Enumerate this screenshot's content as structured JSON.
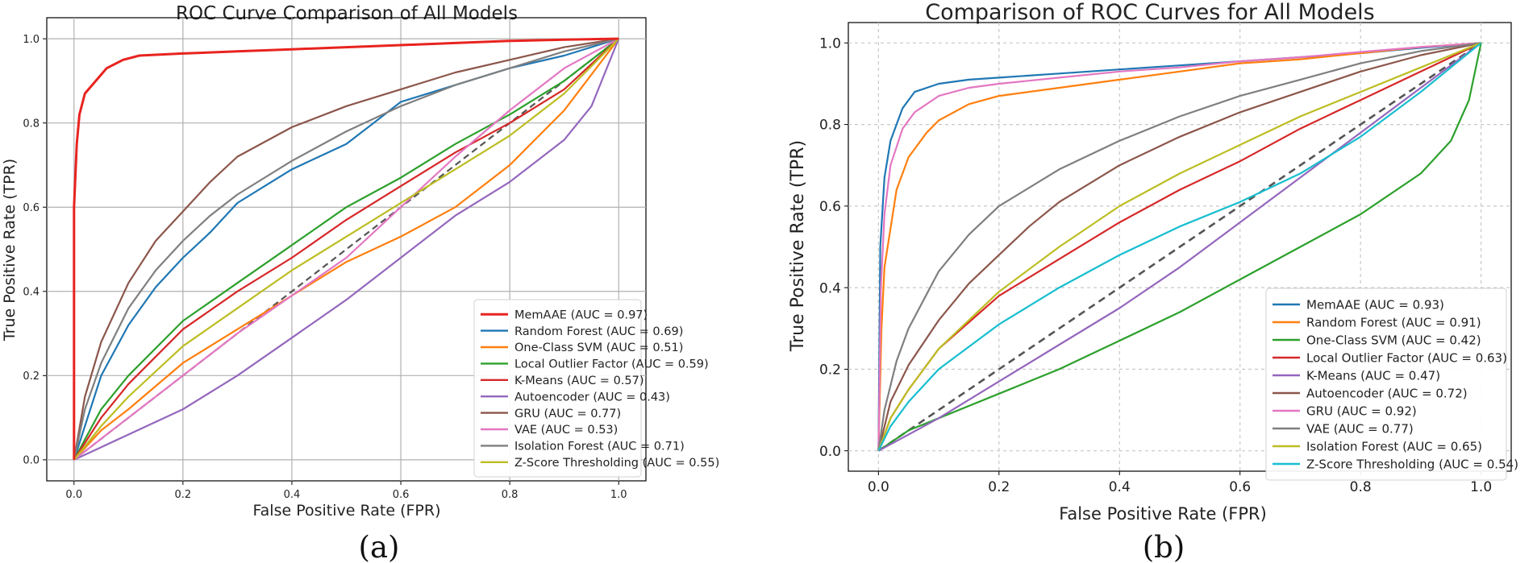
{
  "chart_data": [
    {
      "id": "a",
      "type": "line",
      "title": "ROC Curve Comparison of All Models",
      "xlabel": "False Positive Rate (FPR)",
      "ylabel": "True Positive Rate (TPR)",
      "caption": "(a)",
      "xlim": [
        -0.05,
        1.05
      ],
      "ylim": [
        -0.05,
        1.05
      ],
      "xticks": [
        0.0,
        0.2,
        0.4,
        0.6,
        0.8,
        1.0
      ],
      "yticks": [
        0.0,
        0.2,
        0.4,
        0.6,
        0.8,
        1.0
      ],
      "grid": "solid",
      "legend_position": "lower-right",
      "diagonal": true,
      "series": [
        {
          "name": "MemAAE",
          "label": "MemAAE (AUC = 0.97)",
          "auc": 0.97,
          "color": "#e8231f",
          "x": [
            0,
            0,
            0.005,
            0.01,
            0.02,
            0.04,
            0.06,
            0.09,
            0.12,
            0.2,
            0.3,
            0.4,
            0.5,
            0.6,
            0.7,
            0.8,
            0.9,
            1.0
          ],
          "y": [
            0,
            0.6,
            0.75,
            0.82,
            0.87,
            0.9,
            0.93,
            0.95,
            0.96,
            0.965,
            0.97,
            0.975,
            0.98,
            0.985,
            0.99,
            0.995,
            0.998,
            1.0
          ]
        },
        {
          "name": "Random Forest",
          "label": "Random Forest (AUC = 0.69)",
          "auc": 0.69,
          "color": "#1f77b4",
          "x": [
            0,
            0.02,
            0.05,
            0.1,
            0.15,
            0.2,
            0.25,
            0.3,
            0.35,
            0.4,
            0.45,
            0.5,
            0.55,
            0.6,
            0.7,
            0.8,
            0.9,
            1.0
          ],
          "y": [
            0,
            0.08,
            0.2,
            0.32,
            0.41,
            0.48,
            0.54,
            0.61,
            0.65,
            0.69,
            0.72,
            0.75,
            0.8,
            0.85,
            0.89,
            0.93,
            0.96,
            1.0
          ]
        },
        {
          "name": "One-Class SVM",
          "label": "One-Class SVM (AUC = 0.51)",
          "auc": 0.51,
          "color": "#ff7f0e",
          "x": [
            0,
            0.05,
            0.1,
            0.2,
            0.3,
            0.4,
            0.5,
            0.6,
            0.7,
            0.8,
            0.9,
            1.0
          ],
          "y": [
            0,
            0.07,
            0.12,
            0.23,
            0.31,
            0.39,
            0.47,
            0.53,
            0.6,
            0.7,
            0.83,
            1.0
          ]
        },
        {
          "name": "Local Outlier Factor",
          "label": "Local Outlier Factor (AUC = 0.59)",
          "auc": 0.59,
          "color": "#2ca02c",
          "x": [
            0,
            0.05,
            0.1,
            0.2,
            0.3,
            0.4,
            0.5,
            0.6,
            0.7,
            0.8,
            0.9,
            1.0
          ],
          "y": [
            0,
            0.12,
            0.2,
            0.33,
            0.42,
            0.51,
            0.6,
            0.67,
            0.75,
            0.82,
            0.9,
            1.0
          ]
        },
        {
          "name": "K-Means",
          "label": "K-Means (AUC = 0.57)",
          "auc": 0.57,
          "color": "#d62728",
          "x": [
            0,
            0.05,
            0.1,
            0.2,
            0.3,
            0.4,
            0.5,
            0.6,
            0.7,
            0.8,
            0.9,
            1.0
          ],
          "y": [
            0,
            0.1,
            0.18,
            0.31,
            0.4,
            0.48,
            0.57,
            0.65,
            0.73,
            0.8,
            0.88,
            1.0
          ]
        },
        {
          "name": "Autoencoder",
          "label": "Autoencoder (AUC = 0.43)",
          "auc": 0.43,
          "color": "#9467bd",
          "x": [
            0,
            0.05,
            0.1,
            0.2,
            0.3,
            0.4,
            0.5,
            0.6,
            0.7,
            0.8,
            0.9,
            0.95,
            1.0
          ],
          "y": [
            0,
            0.03,
            0.06,
            0.12,
            0.2,
            0.29,
            0.38,
            0.48,
            0.58,
            0.66,
            0.76,
            0.84,
            1.0
          ]
        },
        {
          "name": "GRU",
          "label": "GRU (AUC = 0.77)",
          "auc": 0.77,
          "color": "#8c564b",
          "x": [
            0,
            0.02,
            0.05,
            0.1,
            0.15,
            0.2,
            0.25,
            0.3,
            0.4,
            0.5,
            0.6,
            0.7,
            0.8,
            0.9,
            1.0
          ],
          "y": [
            0,
            0.15,
            0.28,
            0.42,
            0.52,
            0.59,
            0.66,
            0.72,
            0.79,
            0.84,
            0.88,
            0.92,
            0.95,
            0.98,
            1.0
          ]
        },
        {
          "name": "VAE",
          "label": "VAE (AUC = 0.53)",
          "auc": 0.53,
          "color": "#e377c2",
          "x": [
            0,
            0.05,
            0.1,
            0.2,
            0.3,
            0.4,
            0.5,
            0.6,
            0.7,
            0.8,
            0.9,
            1.0
          ],
          "y": [
            0,
            0.05,
            0.1,
            0.2,
            0.3,
            0.39,
            0.48,
            0.6,
            0.72,
            0.83,
            0.93,
            1.0
          ]
        },
        {
          "name": "Isolation Forest",
          "label": "Isolation Forest (AUC = 0.71)",
          "auc": 0.71,
          "color": "#7f7f7f",
          "x": [
            0,
            0.02,
            0.05,
            0.1,
            0.15,
            0.2,
            0.25,
            0.3,
            0.4,
            0.5,
            0.6,
            0.7,
            0.8,
            0.9,
            1.0
          ],
          "y": [
            0,
            0.12,
            0.23,
            0.36,
            0.45,
            0.52,
            0.58,
            0.63,
            0.71,
            0.78,
            0.84,
            0.89,
            0.93,
            0.97,
            1.0
          ]
        },
        {
          "name": "Z-Score Thresholding",
          "label": "Z-Score Thresholding (AUC = 0.55)",
          "auc": 0.55,
          "color": "#bcbd22",
          "x": [
            0,
            0.05,
            0.1,
            0.2,
            0.3,
            0.4,
            0.5,
            0.6,
            0.7,
            0.8,
            0.9,
            1.0
          ],
          "y": [
            0,
            0.08,
            0.15,
            0.27,
            0.36,
            0.45,
            0.53,
            0.61,
            0.69,
            0.77,
            0.87,
            1.0
          ]
        }
      ]
    },
    {
      "id": "b",
      "type": "line",
      "title": "Comparison of ROC Curves for All Models",
      "xlabel": "False Positive Rate (FPR)",
      "ylabel": "True Positive Rate (TPR)",
      "caption": "(b)",
      "xlim": [
        -0.05,
        1.05
      ],
      "ylim": [
        -0.05,
        1.05
      ],
      "xticks": [
        0.0,
        0.2,
        0.4,
        0.6,
        0.8,
        1.0
      ],
      "yticks": [
        0.0,
        0.2,
        0.4,
        0.6,
        0.8,
        1.0
      ],
      "grid": "dashed",
      "legend_position": "lower-right",
      "diagonal": true,
      "series": [
        {
          "name": "MemAAE",
          "label": "MemAAE (AUC = 0.93)",
          "auc": 0.93,
          "color": "#1f77b4",
          "x": [
            0,
            0.003,
            0.01,
            0.02,
            0.04,
            0.06,
            0.1,
            0.15,
            0.2,
            0.3,
            0.4,
            0.5,
            0.6,
            0.7,
            0.8,
            0.9,
            1.0
          ],
          "y": [
            0,
            0.5,
            0.67,
            0.76,
            0.84,
            0.88,
            0.9,
            0.91,
            0.915,
            0.925,
            0.935,
            0.945,
            0.955,
            0.965,
            0.975,
            0.988,
            1.0
          ]
        },
        {
          "name": "Random Forest",
          "label": "Random Forest (AUC = 0.91)",
          "auc": 0.91,
          "color": "#ff7f0e",
          "x": [
            0,
            0.005,
            0.01,
            0.03,
            0.05,
            0.08,
            0.1,
            0.15,
            0.2,
            0.3,
            0.4,
            0.5,
            0.6,
            0.7,
            0.8,
            0.9,
            1.0
          ],
          "y": [
            0,
            0.3,
            0.45,
            0.64,
            0.72,
            0.78,
            0.81,
            0.85,
            0.87,
            0.89,
            0.91,
            0.93,
            0.95,
            0.96,
            0.975,
            0.99,
            1.0
          ]
        },
        {
          "name": "One-Class SVM",
          "label": "One-Class SVM (AUC = 0.42)",
          "auc": 0.42,
          "color": "#2ca02c",
          "x": [
            0,
            0.05,
            0.1,
            0.2,
            0.3,
            0.4,
            0.5,
            0.6,
            0.7,
            0.8,
            0.9,
            0.95,
            0.98,
            1.0
          ],
          "y": [
            0,
            0.05,
            0.08,
            0.14,
            0.2,
            0.27,
            0.34,
            0.42,
            0.5,
            0.58,
            0.68,
            0.76,
            0.86,
            1.0
          ]
        },
        {
          "name": "Local Outlier Factor",
          "label": "Local Outlier Factor (AUC = 0.63)",
          "auc": 0.63,
          "color": "#d62728",
          "x": [
            0,
            0.02,
            0.05,
            0.1,
            0.2,
            0.3,
            0.4,
            0.5,
            0.6,
            0.7,
            0.8,
            0.9,
            1.0
          ],
          "y": [
            0,
            0.08,
            0.15,
            0.25,
            0.38,
            0.47,
            0.56,
            0.64,
            0.71,
            0.79,
            0.86,
            0.93,
            1.0
          ]
        },
        {
          "name": "K-Means",
          "label": "K-Means (AUC = 0.47)",
          "auc": 0.47,
          "color": "#9467bd",
          "x": [
            0,
            0.1,
            0.2,
            0.3,
            0.4,
            0.5,
            0.6,
            0.7,
            0.8,
            0.9,
            1.0
          ],
          "y": [
            0,
            0.08,
            0.17,
            0.26,
            0.35,
            0.45,
            0.56,
            0.67,
            0.78,
            0.89,
            1.0
          ]
        },
        {
          "name": "Autoencoder",
          "label": "Autoencoder (AUC = 0.72)",
          "auc": 0.72,
          "color": "#8c564b",
          "x": [
            0,
            0.02,
            0.05,
            0.1,
            0.15,
            0.2,
            0.25,
            0.3,
            0.4,
            0.5,
            0.6,
            0.7,
            0.8,
            0.9,
            1.0
          ],
          "y": [
            0,
            0.12,
            0.21,
            0.32,
            0.41,
            0.48,
            0.55,
            0.61,
            0.7,
            0.77,
            0.83,
            0.88,
            0.93,
            0.97,
            1.0
          ]
        },
        {
          "name": "GRU",
          "label": "GRU (AUC = 0.92)",
          "auc": 0.92,
          "color": "#e377c2",
          "x": [
            0,
            0.004,
            0.01,
            0.02,
            0.04,
            0.06,
            0.1,
            0.15,
            0.2,
            0.3,
            0.4,
            0.5,
            0.6,
            0.7,
            0.8,
            0.9,
            1.0
          ],
          "y": [
            0,
            0.4,
            0.58,
            0.7,
            0.79,
            0.83,
            0.87,
            0.89,
            0.9,
            0.915,
            0.93,
            0.94,
            0.955,
            0.965,
            0.978,
            0.99,
            1.0
          ]
        },
        {
          "name": "VAE",
          "label": "VAE (AUC = 0.77)",
          "auc": 0.77,
          "color": "#7f7f7f",
          "x": [
            0,
            0.01,
            0.03,
            0.05,
            0.1,
            0.15,
            0.2,
            0.3,
            0.4,
            0.5,
            0.6,
            0.7,
            0.8,
            0.9,
            1.0
          ],
          "y": [
            0,
            0.1,
            0.22,
            0.3,
            0.44,
            0.53,
            0.6,
            0.69,
            0.76,
            0.82,
            0.87,
            0.91,
            0.95,
            0.98,
            1.0
          ]
        },
        {
          "name": "Isolation Forest",
          "label": "Isolation Forest (AUC = 0.65)",
          "auc": 0.65,
          "color": "#bcbd22",
          "x": [
            0,
            0.02,
            0.05,
            0.1,
            0.2,
            0.3,
            0.4,
            0.5,
            0.6,
            0.7,
            0.8,
            0.9,
            1.0
          ],
          "y": [
            0,
            0.08,
            0.15,
            0.25,
            0.39,
            0.5,
            0.6,
            0.68,
            0.75,
            0.82,
            0.88,
            0.94,
            1.0
          ]
        },
        {
          "name": "Z-Score Thresholding",
          "label": "Z-Score Thresholding (AUC = 0.54)",
          "auc": 0.54,
          "color": "#17becf",
          "x": [
            0,
            0.02,
            0.05,
            0.1,
            0.2,
            0.3,
            0.4,
            0.5,
            0.6,
            0.7,
            0.8,
            0.9,
            1.0
          ],
          "y": [
            0,
            0.06,
            0.12,
            0.2,
            0.31,
            0.4,
            0.48,
            0.55,
            0.61,
            0.68,
            0.77,
            0.88,
            1.0
          ]
        }
      ]
    }
  ]
}
